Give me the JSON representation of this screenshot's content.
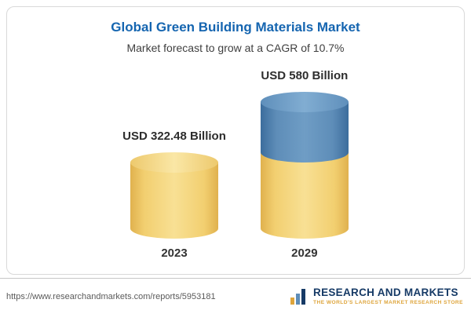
{
  "title": "Global Green Building Materials Market",
  "subtitle": "Market forecast to grow at a CAGR of 10.7%",
  "chart_data": {
    "type": "bar",
    "categories": [
      "2023",
      "2029"
    ],
    "values": [
      322.48,
      580
    ],
    "value_labels": [
      "USD 322.48 Billion",
      "USD 580 Billion"
    ],
    "unit": "USD Billion",
    "cagr_pct": 10.7,
    "ylim": [
      0,
      580
    ],
    "grid": false,
    "legend": false,
    "bar_style": "3d-cylinder",
    "segments_2029": [
      {
        "name": "2023 base",
        "value": 322.48,
        "color": "#F2CF70"
      },
      {
        "name": "growth to 2029",
        "value": 257.52,
        "color": "#5E8DB8"
      }
    ],
    "colors": {
      "base": "#F2CF70",
      "growth": "#5E8DB8"
    }
  },
  "footer": {
    "url": "https://www.researchandmarkets.com/reports/5953181",
    "logo_name": "RESEARCH AND MARKETS",
    "logo_tagline": "THE WORLD'S LARGEST MARKET RESEARCH STORE"
  }
}
